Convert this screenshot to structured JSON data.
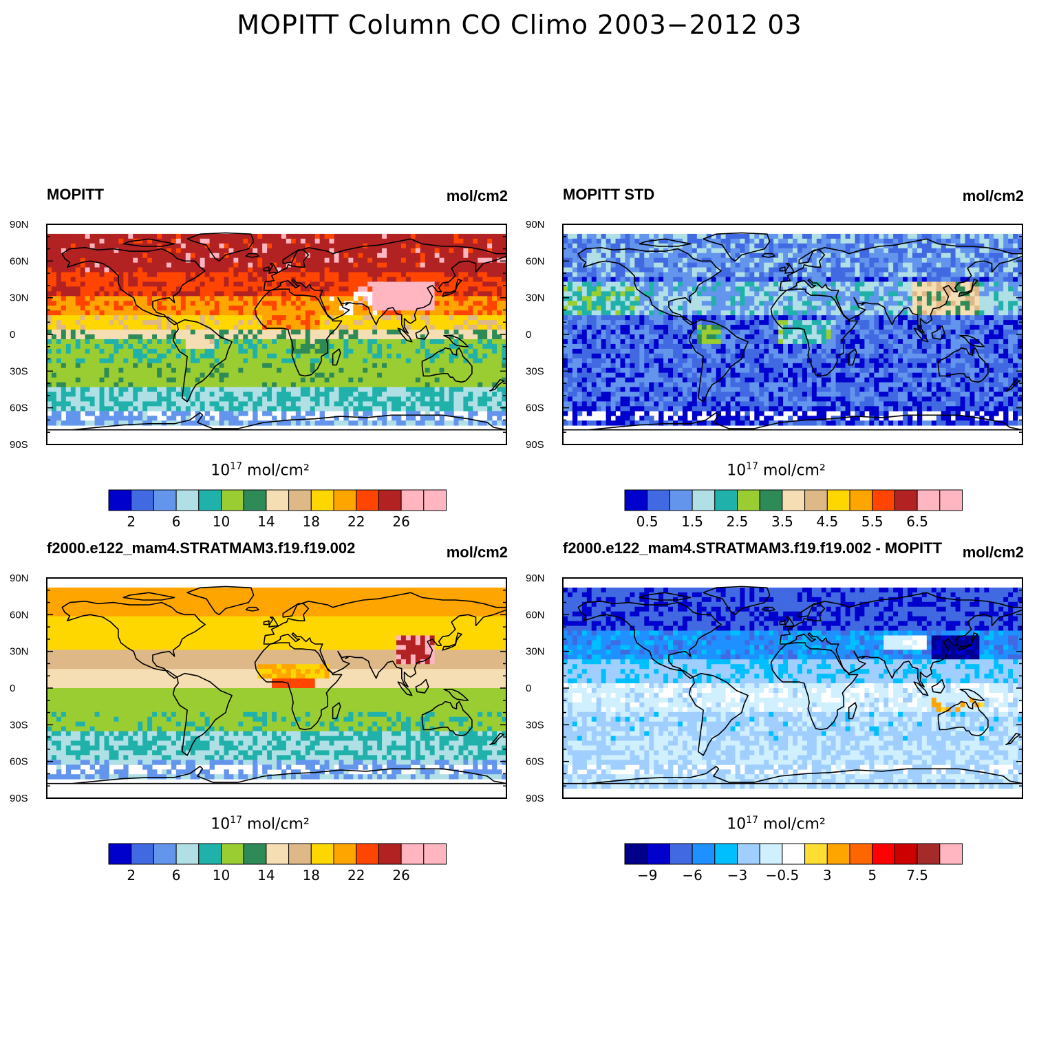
{
  "figure": {
    "title": "MOPITT Column CO Climo 2003−2012 03"
  },
  "lat_labels": [
    "90N",
    "60N",
    "30N",
    "0",
    "30S",
    "60S",
    "90S"
  ],
  "colormaps": {
    "co": [
      "#0000cd",
      "#4169e1",
      "#6495ed",
      "#b0e0e6",
      "#20b2aa",
      "#9acd32",
      "#2e8b57",
      "#f5deb3",
      "#deb887",
      "#ffd700",
      "#ffa500",
      "#ff4500",
      "#b22222",
      "#ffb6c1",
      "#ffb6c1"
    ],
    "diff": [
      "#00008b",
      "#0000cd",
      "#4169e1",
      "#1e90ff",
      "#00bfff",
      "#a0cfff",
      "#d0efff",
      "#ffffff",
      "#ffdd33",
      "#ffa500",
      "#ff6600",
      "#ff0000",
      "#cc0000",
      "#a52a2a",
      "#ffb6c1"
    ]
  },
  "panels": [
    {
      "id": "mopitt",
      "title_left": "MOPITT",
      "title_right": "mol/cm2",
      "units_base": "10",
      "units_exp": "17",
      "units_rest": " mol/cm²",
      "colorbar_ticks": [
        "2",
        "6",
        "10",
        "14",
        "18",
        "22",
        "26"
      ],
      "colormap": "co",
      "field": "mopitt"
    },
    {
      "id": "mopitt-std",
      "title_left": "MOPITT STD",
      "title_right": "mol/cm2",
      "units_base": "10",
      "units_exp": "17",
      "units_rest": " mol/cm²",
      "colorbar_ticks": [
        "0.5",
        "1.5",
        "2.5",
        "3.5",
        "4.5",
        "5.5",
        "6.5"
      ],
      "colormap": "co",
      "field": "std"
    },
    {
      "id": "model",
      "title_left": "f2000.e122_mam4.STRATMAM3.f19.f19.002",
      "title_right": "mol/cm2",
      "units_base": "10",
      "units_exp": "17",
      "units_rest": " mol/cm²",
      "colorbar_ticks": [
        "2",
        "6",
        "10",
        "14",
        "18",
        "22",
        "26"
      ],
      "colormap": "co",
      "field": "model"
    },
    {
      "id": "difference",
      "title_left": "f2000.e122_mam4.STRATMAM3.f19.f19.002 - MOPITT",
      "title_right": "mol/cm2",
      "units_base": "10",
      "units_exp": "17",
      "units_rest": " mol/cm²",
      "colorbar_ticks": [
        "−9",
        "−6",
        "−3",
        "−0.5",
        "3",
        "5",
        "7.5"
      ],
      "colormap": "diff",
      "field": "diff"
    }
  ]
}
